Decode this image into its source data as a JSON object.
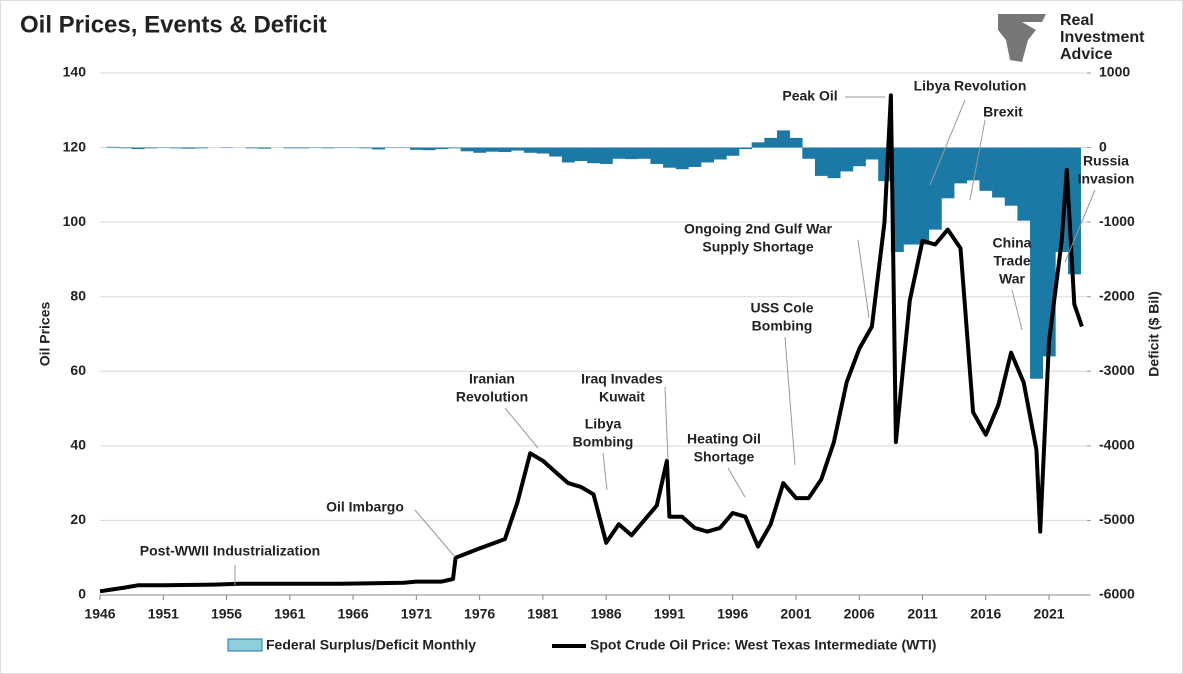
{
  "chart_data": {
    "type": "combo",
    "title": "Oil Prices, Events & Deficit",
    "logo": [
      "Real",
      "Investment",
      "Advice"
    ],
    "ylabel": "Oil Prices",
    "y2label": "Deficit ($ Bil)",
    "xlim": [
      1946,
      2024
    ],
    "xticks": [
      1946,
      1951,
      1956,
      1961,
      1966,
      1971,
      1976,
      1981,
      1986,
      1991,
      1996,
      2001,
      2006,
      2011,
      2016,
      2021
    ],
    "ylim": [
      0,
      140
    ],
    "yticks": [
      0,
      20,
      40,
      60,
      80,
      100,
      120,
      140
    ],
    "y2lim": [
      -6000,
      1000
    ],
    "y2ticks": [
      -6000,
      -5000,
      -4000,
      -3000,
      -2000,
      -1000,
      0,
      1000
    ],
    "grid": true,
    "series": [
      {
        "name": "Federal Surplus/Deficit Monthly",
        "type": "bar",
        "axis": "y2",
        "color": "#1b79a6",
        "x": [
          1947,
          1948,
          1949,
          1950,
          1951,
          1952,
          1953,
          1954,
          1955,
          1956,
          1957,
          1958,
          1959,
          1960,
          1961,
          1962,
          1963,
          1964,
          1965,
          1966,
          1967,
          1968,
          1969,
          1970,
          1971,
          1972,
          1973,
          1974,
          1975,
          1976,
          1977,
          1978,
          1979,
          1980,
          1981,
          1982,
          1983,
          1984,
          1985,
          1986,
          1987,
          1988,
          1989,
          1990,
          1991,
          1992,
          1993,
          1994,
          1995,
          1996,
          1997,
          1998,
          1999,
          2000,
          2001,
          2002,
          2003,
          2004,
          2005,
          2006,
          2007,
          2008,
          2009,
          2010,
          2011,
          2012,
          2013,
          2014,
          2015,
          2016,
          2017,
          2018,
          2019,
          2020,
          2021,
          2022,
          2023
        ],
        "values": [
          10,
          -10,
          -20,
          -10,
          5,
          -10,
          -15,
          -10,
          0,
          5,
          0,
          -10,
          -15,
          0,
          -10,
          -10,
          -5,
          -10,
          -5,
          -5,
          -10,
          -25,
          5,
          -5,
          -30,
          -35,
          -20,
          -10,
          -50,
          -70,
          -55,
          -60,
          -40,
          -70,
          -80,
          -120,
          -200,
          -180,
          -210,
          -220,
          -150,
          -155,
          -150,
          -220,
          -270,
          -290,
          -260,
          -200,
          -160,
          -110,
          -20,
          70,
          130,
          230,
          130,
          -150,
          -380,
          -410,
          -320,
          -250,
          -160,
          -450,
          -1400,
          -1300,
          -1300,
          -1100,
          -680,
          -480,
          -440,
          -580,
          -670,
          -780,
          -980,
          -3100,
          -2800,
          -1400,
          -1700
        ]
      },
      {
        "name": "Spot Crude Oil Price: West Texas Intermediate (WTI)",
        "type": "line",
        "color": "#000000",
        "x": [
          1946,
          1947,
          1948,
          1949,
          1951,
          1955,
          1957,
          1965,
          1970,
          1971,
          1973,
          1973.9,
          1974.1,
          1976,
          1978,
          1979,
          1980,
          1981,
          1982,
          1983,
          1984,
          1985,
          1986,
          1987,
          1988,
          1989,
          1990,
          1990.8,
          1991,
          1992,
          1993,
          1994,
          1995,
          1996,
          1997,
          1998,
          1999,
          2000,
          2001,
          2002,
          2003,
          2004,
          2005,
          2006,
          2007,
          2008,
          2008.5,
          2008.9,
          2009.5,
          2010,
          2011,
          2012,
          2013,
          2014,
          2015,
          2016,
          2017,
          2018,
          2019,
          2020,
          2020.3,
          2021,
          2022,
          2022.4,
          2023,
          2023.6
        ],
        "values": [
          1,
          1.5,
          2,
          2.6,
          2.6,
          2.8,
          3,
          3,
          3.3,
          3.6,
          3.6,
          4.3,
          10,
          12.5,
          15,
          25,
          38,
          36,
          33,
          30,
          29,
          27,
          14,
          19,
          16,
          20,
          24,
          36,
          21,
          21,
          18,
          17,
          18,
          22,
          21,
          13,
          19,
          30,
          26,
          26,
          31,
          41,
          57,
          66,
          72,
          100,
          134,
          41,
          62,
          79,
          95,
          94,
          98,
          93,
          49,
          43,
          51,
          65,
          57,
          39,
          17,
          68,
          95,
          114,
          78,
          72
        ]
      }
    ],
    "annotations": [
      [
        "Post-WWII Industrialization"
      ],
      [
        "Oil Imbargo"
      ],
      [
        "Iranian",
        "Revolution"
      ],
      [
        "Libya",
        "Bombing"
      ],
      [
        "Iraq Invades",
        "Kuwait"
      ],
      [
        "Heating Oil",
        "Shortage"
      ],
      [
        "USS Cole",
        "Bombing"
      ],
      [
        "Ongoing 2nd Gulf War",
        "Supply Shortage"
      ],
      [
        "Peak Oil"
      ],
      [
        "Libya Revolution"
      ],
      [
        "Brexit"
      ],
      [
        "China",
        "Trade",
        "War"
      ],
      [
        "Russia",
        "Invasion"
      ]
    ]
  }
}
